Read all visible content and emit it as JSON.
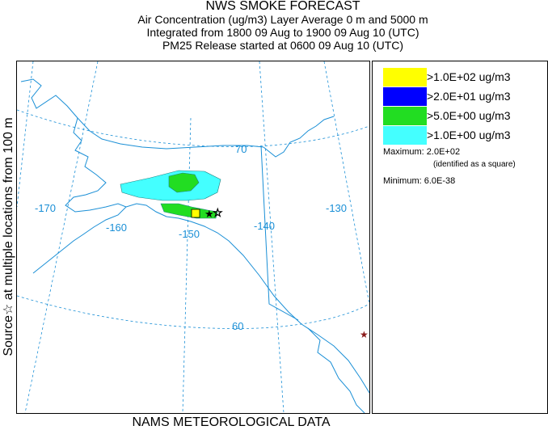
{
  "title": {
    "line1": "NWS SMOKE FORECAST",
    "line2": "Air Concentration (ug/m3) Layer Average    0 m and  5000 m",
    "line3": "Integrated from 1800 09 Aug to 1900 09 Aug 10 (UTC)",
    "line4": "PM25 Release started at 0600 09 Aug 10 (UTC)"
  },
  "side_label": "Source☆  at multiple locations   from   100 m",
  "bottom_label": "NAMS METEOROLOGICAL DATA",
  "map": {
    "longitude_labels": [
      "-170",
      "-160",
      "-150",
      "-140",
      "-130"
    ],
    "latitude_labels": [
      "70",
      "60"
    ],
    "colors": {
      "coast": "#1a8fd6",
      "grid": "#1a8fd6",
      "text": "#1a8fd6",
      "source_marker": "#8b1a1a"
    }
  },
  "legend": {
    "entries": [
      {
        "label": ">1.0E+02 ug/m3",
        "color": "#ffff00"
      },
      {
        "label": ">2.0E+01 ug/m3",
        "color": "#0000ff"
      },
      {
        "label": ">5.0E+00 ug/m3",
        "color": "#22dd22"
      },
      {
        "label": ">1.0E+00 ug/m3",
        "color": "#44ffff"
      }
    ],
    "maximum": "Maximum: 2.0E+02",
    "maximum_note": "(identified as a square)",
    "minimum": "Minimum: 6.0E-38"
  }
}
